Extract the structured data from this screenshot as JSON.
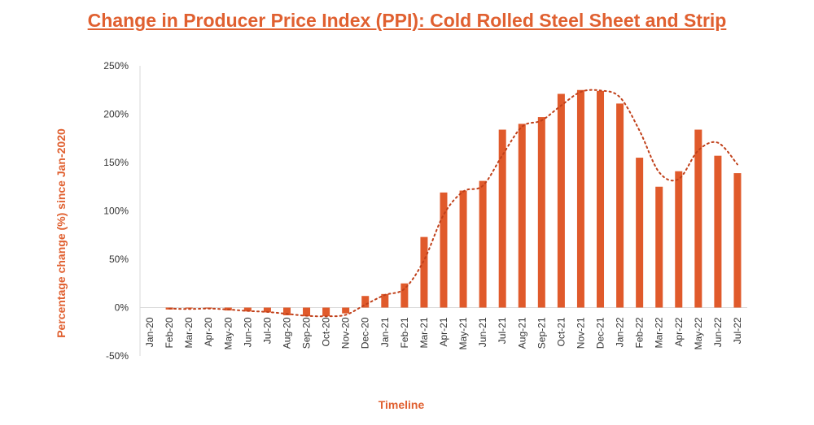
{
  "chart_data": {
    "type": "bar",
    "title": "Change in Producer Price Index (PPI): Cold Rolled Steel Sheet and Strip",
    "xlabel": "Timeline",
    "ylabel": "Percentage change (%) since Jan-2020",
    "ylim": [
      -50,
      250
    ],
    "yticks": [
      "-50%",
      "0%",
      "50%",
      "100%",
      "150%",
      "200%",
      "250%"
    ],
    "ytick_values": [
      -50,
      0,
      50,
      100,
      150,
      200,
      250
    ],
    "categories": [
      "Jan-20",
      "Feb-20",
      "Mar-20",
      "Apr-20",
      "May-20",
      "Jun-20",
      "Jul-20",
      "Aug-20",
      "Sep-20",
      "Oct-20",
      "Nov-20",
      "Dec-20",
      "Jan-21",
      "Feb-21",
      "Mar-21",
      "Apr-21",
      "May-21",
      "Jun-21",
      "Jul-21",
      "Aug-21",
      "Sep-21",
      "Oct-21",
      "Nov-21",
      "Dec-21",
      "Jan-22",
      "Feb-22",
      "Mar-22",
      "Apr-22",
      "May-22",
      "Jun-22",
      "Jul-22"
    ],
    "values": [
      0,
      -2,
      -1,
      -1,
      -3,
      -4,
      -5,
      -8,
      -9,
      -9,
      -6,
      12,
      14,
      25,
      73,
      119,
      121,
      131,
      184,
      190,
      197,
      221,
      225,
      224,
      211,
      155,
      125,
      141,
      184,
      157,
      139
    ],
    "trendline": {
      "style": "dotted",
      "type": "moving-average"
    },
    "grid": false,
    "legend": "none",
    "colors": {
      "bar": "#e05a2b",
      "trend": "#c0401a",
      "title": "#e06030"
    }
  }
}
